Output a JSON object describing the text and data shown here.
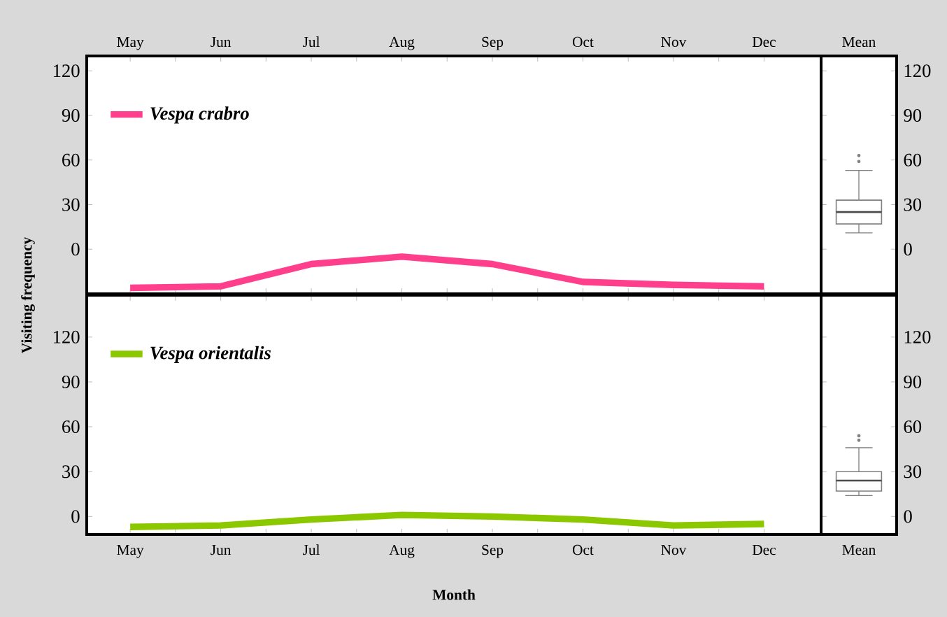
{
  "chart_data": [
    {
      "type": "line",
      "ylabel": "Visiting frequency",
      "categories": [
        "May",
        "Jun",
        "Jul",
        "Aug",
        "Sep",
        "Oct",
        "Nov",
        "Dec"
      ],
      "ylim": [
        -30,
        130
      ],
      "yticks": [
        0,
        30,
        60,
        90,
        120
      ],
      "legend": "top left",
      "series": [
        {
          "name": "Vespa crabro",
          "color": "#ff3f8c",
          "values": [
            -26,
            -25,
            -10,
            -5,
            -10,
            -22,
            -24,
            -25
          ]
        }
      ]
    },
    {
      "type": "box",
      "categories": [
        "Mean"
      ],
      "ylim": [
        -30,
        130
      ],
      "yticks": [
        0,
        30,
        60,
        90,
        120
      ],
      "boxes": [
        {
          "low": 11,
          "q1": 17,
          "median": 25,
          "q3": 33,
          "high": 53,
          "outliers": [
            59,
            63
          ]
        }
      ]
    },
    {
      "type": "line",
      "xlabel": "Month",
      "categories": [
        "May",
        "Jun",
        "Jul",
        "Aug",
        "Sep",
        "Oct",
        "Nov",
        "Dec"
      ],
      "ylim": [
        -12,
        148
      ],
      "yticks": [
        0,
        30,
        60,
        90,
        120
      ],
      "legend": "top left",
      "series": [
        {
          "name": "Vespa orientalis",
          "color": "#8cc800",
          "values": [
            -7,
            -6,
            -2,
            1,
            0,
            -2,
            -6,
            -5
          ]
        }
      ]
    },
    {
      "type": "box",
      "categories": [
        "Mean"
      ],
      "ylim": [
        -12,
        148
      ],
      "yticks": [
        0,
        30,
        60,
        90,
        120
      ],
      "boxes": [
        {
          "low": 14,
          "q1": 17,
          "median": 24,
          "q3": 30,
          "high": 46,
          "outliers": [
            51,
            54
          ]
        }
      ]
    }
  ]
}
